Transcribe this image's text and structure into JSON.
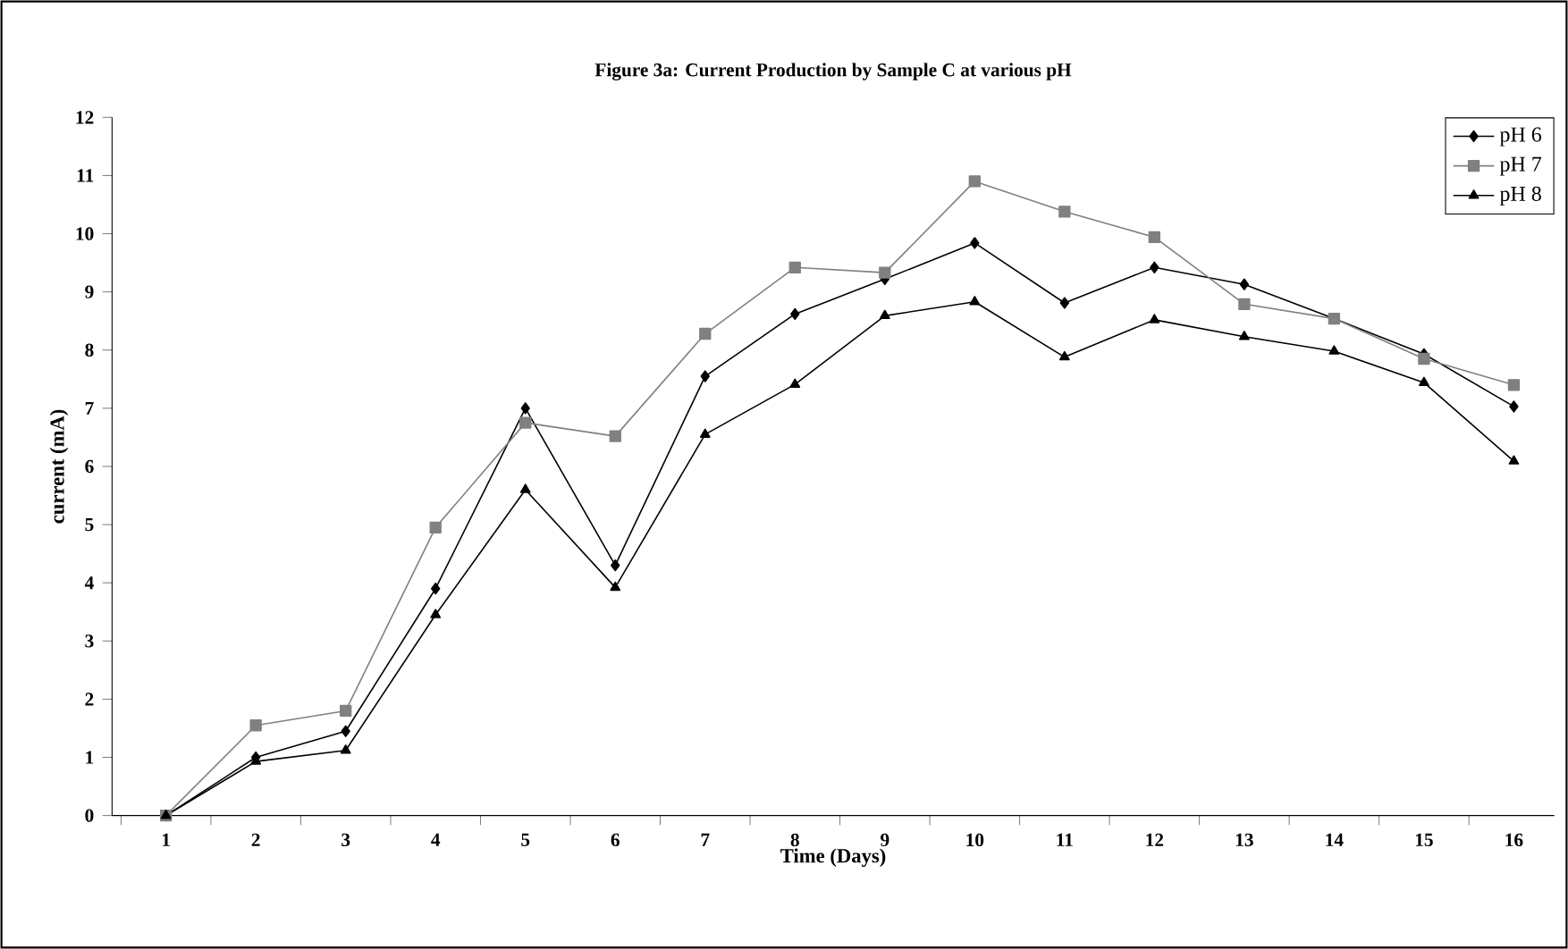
{
  "chart_data": {
    "type": "line",
    "title": "Figure 3a: Current Production by Sample C at various pH",
    "xlabel": "Time (Days)",
    "ylabel": "current (mA)",
    "categories": [
      "1",
      "2",
      "3",
      "4",
      "5",
      "6",
      "7",
      "8",
      "9",
      "10",
      "11",
      "12",
      "13",
      "14",
      "15",
      "16"
    ],
    "ylim": [
      0,
      12
    ],
    "yticks": [
      0,
      1,
      2,
      3,
      4,
      5,
      6,
      7,
      8,
      9,
      10,
      11,
      12
    ],
    "grid": false,
    "legend": "top right",
    "line_style": "solid",
    "series": [
      {
        "name": "pH 6",
        "color": "#000000",
        "marker": "diamond",
        "values": [
          0,
          1.0,
          1.45,
          3.9,
          7.0,
          4.3,
          7.55,
          8.62,
          9.22,
          9.84,
          8.81,
          9.42,
          9.13,
          8.54,
          7.93,
          7.03
        ]
      },
      {
        "name": "pH 7",
        "color": "#808080",
        "marker": "square",
        "values": [
          0,
          1.55,
          1.8,
          4.95,
          6.75,
          6.52,
          8.28,
          9.42,
          9.33,
          10.9,
          10.38,
          9.94,
          8.79,
          8.54,
          7.85,
          7.4
        ]
      },
      {
        "name": "pH 8",
        "color": "#000000",
        "marker": "triangle",
        "values": [
          0,
          0.93,
          1.12,
          3.45,
          5.6,
          3.92,
          6.55,
          7.41,
          8.59,
          8.83,
          7.88,
          8.52,
          8.23,
          7.98,
          7.44,
          6.09
        ]
      }
    ]
  }
}
